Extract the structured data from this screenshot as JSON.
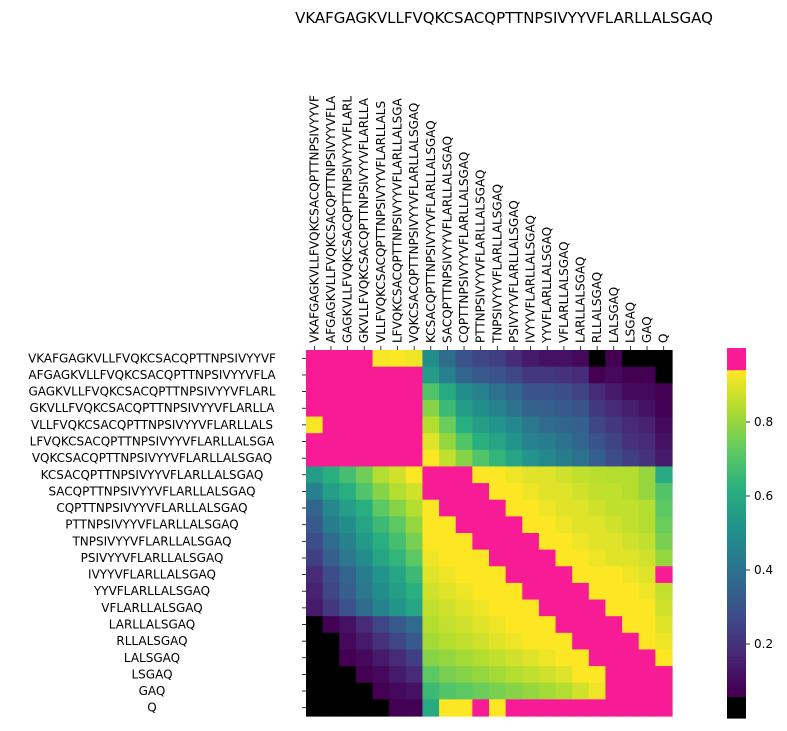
{
  "chart_data": {
    "type": "heatmap",
    "title": "VKAFGAGKVLLFVQKCSACQPTTNPSIVYYVFLARLLALSGAQ",
    "xlabel": "",
    "ylabel": "",
    "labels": [
      "VKAFGAGKVLLFVQKCSACQPTTNPSIVYYVF",
      "AFGAGKVLLFVQKCSACQPTTNPSIVYYVFLA",
      "GAGKVLLFVQKCSACQPTTNPSIVYYVFLARL",
      "GKVLLFVQKCSACQPTTNPSIVYYVFLARLLA",
      "VLLFVQKCSACQPTTNPSIVYYVFLARLLALS",
      "LFVQKCSACQPTTNPSIVYYVFLARLLALSGA",
      "VQKCSACQPTTNPSIVYYVFLARLLALSGAQ",
      "KCSACQPTTNPSIVYYVFLARLLALSGAQ",
      "SACQPTTNPSIVYYVFLARLLALSGAQ",
      "CQPTTNPSIVYYVFLARLLALSGAQ",
      "PTTNPSIVYYVFLARLLALSGAQ",
      "TNPSIVYYVFLARLLALSGAQ",
      "PSIVYYVFLARLLALSGAQ",
      "IVYYVFLARLLALSGAQ",
      "YYVFLARLLALSGAQ",
      "VFLARLLALSGAQ",
      "LARLLALSGAQ",
      "RLLALSGAQ",
      "LALSGAQ",
      "LSGAQ",
      "GAQ",
      "Q"
    ],
    "zlim": [
      0.0,
      1.0
    ],
    "colorbar": {
      "ticks": [
        0.2,
        0.4,
        0.6,
        0.8
      ],
      "tick_labels": [
        "0.2",
        "0.4",
        "0.6",
        "0.8"
      ]
    },
    "colors": {
      "high": "#f81b96",
      "low": "#000000",
      "viridis": [
        "#440154",
        "#472d7b",
        "#3b528b",
        "#2c728e",
        "#21918c",
        "#28ae80",
        "#5ec962",
        "#addc30",
        "#fde725"
      ]
    },
    "matrix": [
      [
        1,
        1,
        0.99,
        1,
        0.93,
        0.98,
        0.92,
        0.5,
        0.38,
        0.3,
        0.26,
        0.24,
        0.18,
        0.14,
        0.12,
        0.12,
        0.1,
        0.05,
        0.08,
        0.04,
        0.02,
        0.0
      ],
      [
        1,
        1,
        1,
        1,
        1,
        1,
        1,
        0.55,
        0.45,
        0.36,
        0.32,
        0.3,
        0.26,
        0.22,
        0.22,
        0.2,
        0.18,
        0.08,
        0.1,
        0.06,
        0.06,
        0.02
      ],
      [
        1,
        1,
        1,
        1,
        1,
        1,
        1,
        0.7,
        0.6,
        0.5,
        0.45,
        0.4,
        0.36,
        0.3,
        0.3,
        0.28,
        0.25,
        0.18,
        0.14,
        0.1,
        0.1,
        0.06
      ],
      [
        1,
        1,
        1,
        1,
        1,
        1,
        1,
        0.78,
        0.66,
        0.55,
        0.5,
        0.46,
        0.4,
        0.35,
        0.34,
        0.32,
        0.3,
        0.22,
        0.18,
        0.15,
        0.12,
        0.08
      ],
      [
        0.93,
        1,
        1,
        1,
        1,
        1,
        1,
        0.84,
        0.74,
        0.62,
        0.56,
        0.52,
        0.48,
        0.42,
        0.38,
        0.36,
        0.34,
        0.26,
        0.22,
        0.18,
        0.16,
        0.1
      ],
      [
        1,
        1,
        1,
        1,
        1,
        1,
        1,
        0.9,
        0.8,
        0.7,
        0.62,
        0.58,
        0.52,
        0.46,
        0.44,
        0.4,
        0.36,
        0.3,
        0.25,
        0.2,
        0.18,
        0.12
      ],
      [
        1,
        1,
        1,
        1,
        1,
        1,
        1,
        0.94,
        0.86,
        0.78,
        0.7,
        0.64,
        0.58,
        0.52,
        0.48,
        0.44,
        0.4,
        0.34,
        0.28,
        0.24,
        0.2,
        0.14
      ],
      [
        0.55,
        0.62,
        0.68,
        0.75,
        0.84,
        0.88,
        0.94,
        1,
        1,
        1,
        0.96,
        0.94,
        0.92,
        0.9,
        0.9,
        0.88,
        0.86,
        0.85,
        0.84,
        0.84,
        0.8,
        0.6
      ],
      [
        0.45,
        0.56,
        0.62,
        0.7,
        0.78,
        0.84,
        0.88,
        1,
        1,
        1,
        1,
        0.96,
        0.94,
        0.92,
        0.9,
        0.9,
        0.88,
        0.86,
        0.86,
        0.84,
        0.8,
        0.7
      ],
      [
        0.36,
        0.48,
        0.56,
        0.62,
        0.72,
        0.78,
        0.84,
        0.96,
        1,
        1,
        1,
        1,
        0.96,
        0.94,
        0.92,
        0.9,
        0.9,
        0.88,
        0.86,
        0.86,
        0.84,
        0.72
      ],
      [
        0.32,
        0.44,
        0.5,
        0.58,
        0.66,
        0.72,
        0.8,
        0.95,
        0.98,
        1,
        1,
        1,
        1,
        0.96,
        0.94,
        0.92,
        0.9,
        0.9,
        0.88,
        0.86,
        0.84,
        0.74
      ],
      [
        0.28,
        0.38,
        0.46,
        0.54,
        0.62,
        0.68,
        0.76,
        0.94,
        0.96,
        0.98,
        1,
        1,
        1,
        1,
        0.96,
        0.94,
        0.92,
        0.9,
        0.9,
        0.88,
        0.86,
        0.76
      ],
      [
        0.24,
        0.34,
        0.42,
        0.5,
        0.58,
        0.64,
        0.72,
        0.92,
        0.94,
        0.96,
        0.98,
        1,
        1,
        1,
        1,
        0.96,
        0.94,
        0.92,
        0.9,
        0.9,
        0.88,
        0.8
      ],
      [
        0.18,
        0.28,
        0.36,
        0.44,
        0.52,
        0.58,
        0.66,
        0.9,
        0.92,
        0.94,
        0.96,
        0.98,
        1,
        1,
        1,
        1,
        0.98,
        0.96,
        0.94,
        0.92,
        0.9,
        1
      ],
      [
        0.16,
        0.26,
        0.34,
        0.42,
        0.5,
        0.56,
        0.62,
        0.88,
        0.9,
        0.92,
        0.94,
        0.96,
        0.98,
        1,
        1,
        1,
        1,
        0.98,
        0.96,
        0.94,
        0.92,
        0.86
      ],
      [
        0.14,
        0.22,
        0.3,
        0.38,
        0.46,
        0.52,
        0.58,
        0.86,
        0.88,
        0.9,
        0.92,
        0.94,
        0.96,
        0.98,
        1,
        1,
        1,
        1,
        0.98,
        0.96,
        0.94,
        0.88
      ],
      [
        0.02,
        0.06,
        0.12,
        0.18,
        0.26,
        0.32,
        0.38,
        0.84,
        0.86,
        0.88,
        0.9,
        0.92,
        0.94,
        0.96,
        0.98,
        1,
        1,
        1,
        1,
        0.98,
        0.96,
        0.9
      ],
      [
        0.0,
        0.04,
        0.1,
        0.14,
        0.2,
        0.26,
        0.32,
        0.82,
        0.84,
        0.86,
        0.88,
        0.9,
        0.92,
        0.94,
        0.96,
        0.98,
        1,
        1,
        1,
        1,
        0.98,
        0.92
      ],
      [
        0.0,
        0.02,
        0.06,
        0.1,
        0.14,
        0.18,
        0.24,
        0.78,
        0.8,
        0.82,
        0.84,
        0.86,
        0.88,
        0.9,
        0.92,
        0.94,
        0.98,
        1,
        1,
        1,
        1,
        0.94
      ],
      [
        0.0,
        0.0,
        0.02,
        0.06,
        0.1,
        0.14,
        0.18,
        0.72,
        0.76,
        0.78,
        0.8,
        0.82,
        0.84,
        0.86,
        0.88,
        0.9,
        0.94,
        0.98,
        1,
        1,
        1,
        1
      ],
      [
        0.0,
        0.0,
        0.0,
        0.02,
        0.06,
        0.1,
        0.12,
        0.66,
        0.7,
        0.72,
        0.74,
        0.76,
        0.78,
        0.8,
        0.82,
        0.84,
        0.88,
        0.92,
        1,
        1,
        1,
        1
      ],
      [
        0.0,
        0.0,
        0.0,
        0.0,
        0.04,
        0.06,
        0.08,
        0.6,
        0.94,
        0.96,
        1,
        0.96,
        1,
        1,
        1,
        1,
        1,
        1,
        1,
        1,
        1,
        1
      ]
    ]
  }
}
